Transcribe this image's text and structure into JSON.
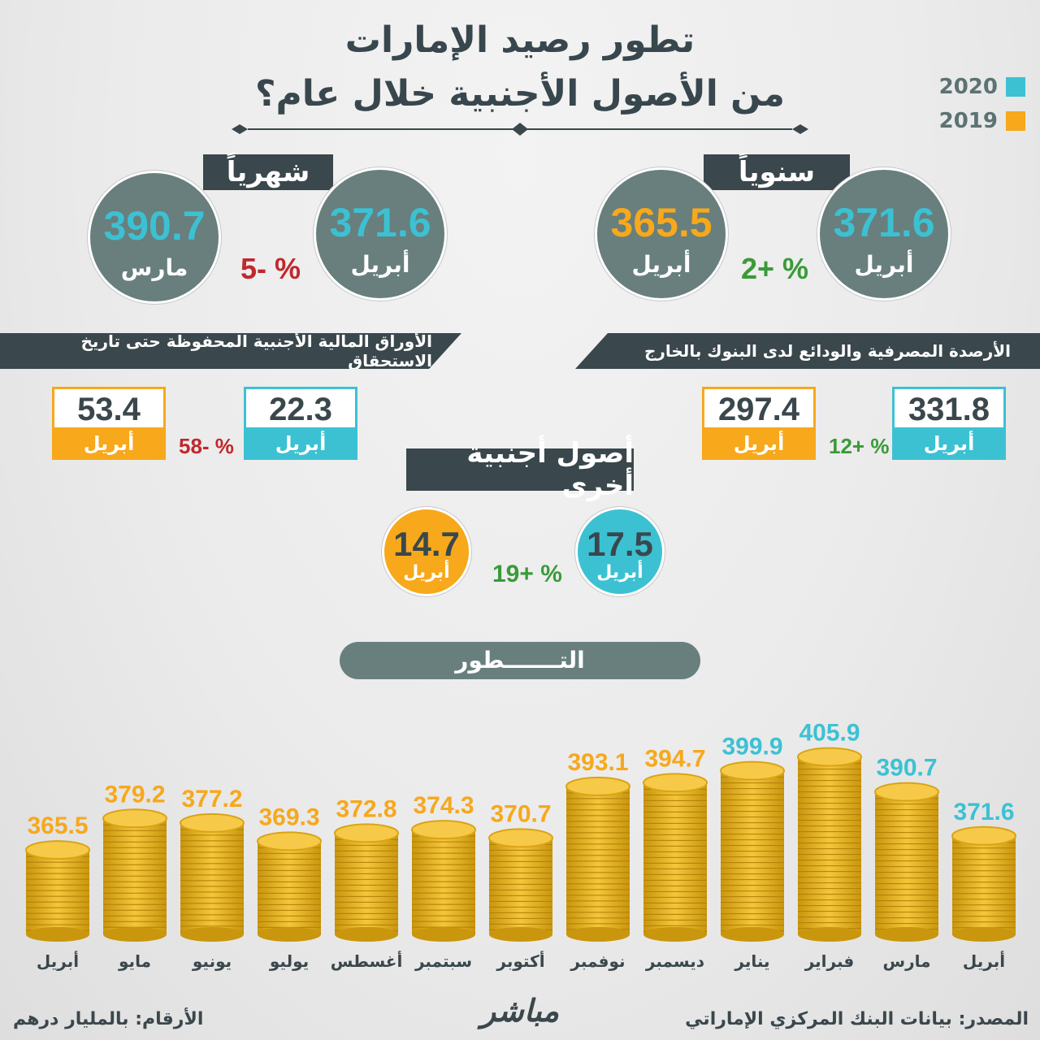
{
  "title_line1": "تطور رصيد الإمارات",
  "title_line2": "من الأصول الأجنبية خلال عام؟",
  "legend": [
    {
      "label": "2020",
      "color": "#3cc1d3"
    },
    {
      "label": "2019",
      "color": "#f7a81b"
    }
  ],
  "yearly": {
    "banner": "سنوياً",
    "current": {
      "value": "371.6",
      "label": "أبريل",
      "color": "#687f7e"
    },
    "previous": {
      "value": "365.5",
      "label": "أبريل",
      "color": "#687f7e"
    },
    "change": "2+ %"
  },
  "monthly": {
    "banner": "شهرياً",
    "current": {
      "value": "371.6",
      "label": "أبريل"
    },
    "previous": {
      "value": "390.7",
      "label": "مارس"
    },
    "change": "5- %"
  },
  "bank_deposits": {
    "title": "الأرصدة المصرفية والودائع لدى البنوك بالخارج",
    "current": {
      "value": "331.8",
      "label": "أبريل"
    },
    "previous": {
      "value": "297.4",
      "label": "أبريل"
    },
    "change": "12+ %"
  },
  "securities": {
    "title": "الأوراق المالية الأجنبية المحفوظة حتى تاريخ الاستحقاق",
    "current": {
      "value": "22.3",
      "label": "أبريل"
    },
    "previous": {
      "value": "53.4",
      "label": "أبريل"
    },
    "change": "58- %"
  },
  "other_assets": {
    "banner": "أصول أجنبية أخرى",
    "current": {
      "value": "17.5",
      "label": "أبريل"
    },
    "previous": {
      "value": "14.7",
      "label": "أبريل"
    },
    "change": "19+ %"
  },
  "evolution_title": "التـــــــطور",
  "chart_data": {
    "type": "bar",
    "categories": [
      "أبريل",
      "مايو",
      "يونيو",
      "يوليو",
      "أغسطس",
      "سبتمبر",
      "أكتوبر",
      "نوفمبر",
      "ديسمبر",
      "يناير",
      "فبراير",
      "مارس",
      "أبريل"
    ],
    "values": [
      365.5,
      379.2,
      377.2,
      369.3,
      372.8,
      374.3,
      370.7,
      393.1,
      394.7,
      399.9,
      405.9,
      390.7,
      371.6
    ],
    "year_colors": [
      "#f7a81b",
      "#f7a81b",
      "#f7a81b",
      "#f7a81b",
      "#f7a81b",
      "#f7a81b",
      "#f7a81b",
      "#f7a81b",
      "#f7a81b",
      "#3cc1d3",
      "#3cc1d3",
      "#3cc1d3",
      "#3cc1d3"
    ],
    "title": "",
    "xlabel": "",
    "ylabel": ""
  },
  "footer": {
    "source": "المصدر: بيانات البنك المركزي الإماراتي",
    "units": "الأرقام: بالمليار درهم",
    "brand": "مباشر"
  }
}
